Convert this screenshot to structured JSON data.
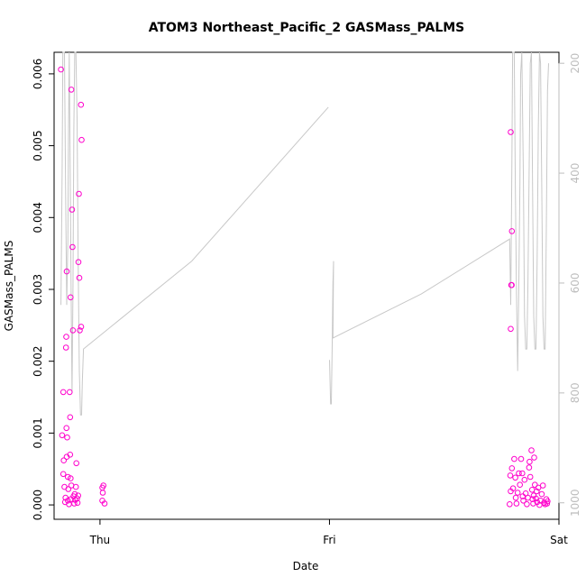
{
  "chart_data": {
    "type": "scatter",
    "title": "ATOM3 Northeast_Pacific_2 GASMass_PALMS",
    "xlabel": "Date",
    "ylabel": "GASMass_PALMS",
    "x_ticks": [
      "Thu",
      "Fri",
      "Sat"
    ],
    "x_range_days": [
      -0.2,
      2.0
    ],
    "ylim": [
      -0.0002,
      0.0063
    ],
    "y_ticks": [
      "0.000",
      "0.001",
      "0.002",
      "0.003",
      "0.004",
      "0.005",
      "0.006"
    ],
    "y_tick_values": [
      0,
      0.001,
      0.002,
      0.003,
      0.004,
      0.005,
      0.006
    ],
    "right_axis": {
      "ticks": [
        "200",
        "400",
        "600",
        "800",
        "1000"
      ],
      "tick_values": [
        200,
        400,
        600,
        800,
        1000
      ],
      "range": [
        1030,
        180
      ],
      "color": "#bdbdbd"
    },
    "grid": false,
    "colors": {
      "points": "#ff00cc",
      "line": "#c8c8c8"
    },
    "series": [
      {
        "type": "points",
        "points": [
          [
            -0.17,
            0.00606
          ],
          [
            -0.16,
            0.00157
          ],
          [
            -0.165,
            0.00097
          ],
          [
            -0.158,
            0.00062
          ],
          [
            -0.16,
            0.00043
          ],
          [
            -0.155,
            0.00025
          ],
          [
            -0.15,
            0.0001
          ],
          [
            -0.152,
            4e-05
          ],
          [
            -0.148,
            0.00219
          ],
          [
            -0.147,
            0.00234
          ],
          [
            -0.145,
            0.00325
          ],
          [
            -0.146,
            0.00107
          ],
          [
            -0.143,
            0.00094
          ],
          [
            -0.145,
            0.00067
          ],
          [
            -0.14,
            0.00039
          ],
          [
            -0.138,
            0.00022
          ],
          [
            -0.14,
            6e-05
          ],
          [
            -0.135,
            1e-05
          ],
          [
            -0.132,
            0.00157
          ],
          [
            -0.13,
            0.00122
          ],
          [
            -0.13,
            0.0007
          ],
          [
            -0.128,
            0.00037
          ],
          [
            -0.125,
            0.00027
          ],
          [
            -0.127,
            8e-05
          ],
          [
            -0.128,
            0.00289
          ],
          [
            -0.125,
            0.00578
          ],
          [
            -0.122,
            0.00411
          ],
          [
            -0.12,
            0.00359
          ],
          [
            -0.118,
            0.00243
          ],
          [
            -0.115,
            0.00012
          ],
          [
            -0.112,
            2e-05
          ],
          [
            -0.11,
            0.00015
          ],
          [
            -0.108,
            7e-05
          ],
          [
            -0.105,
            0.00025
          ],
          [
            -0.103,
            0.00058
          ],
          [
            -0.1,
            9e-05
          ],
          [
            -0.098,
            3e-05
          ],
          [
            -0.095,
            0.00013
          ],
          [
            -0.094,
            0.00338
          ],
          [
            -0.092,
            0.00433
          ],
          [
            -0.09,
            0.00316
          ],
          [
            -0.088,
            0.00243
          ],
          [
            -0.083,
            0.00557
          ],
          [
            -0.08,
            0.00508
          ],
          [
            -0.082,
            0.00248
          ],
          [
            0.01,
            0.00024
          ],
          [
            0.015,
            0.00027
          ],
          [
            0.012,
            0.00017
          ],
          [
            0.01,
            6e-05
          ],
          [
            0.02,
            2e-05
          ],
          [
            1.79,
            0.00519
          ],
          [
            1.795,
            0.00381
          ],
          [
            1.792,
            0.00306
          ],
          [
            1.794,
            0.00306
          ],
          [
            1.79,
            0.00245
          ],
          [
            1.785,
            1e-05
          ],
          [
            1.79,
            0.00019
          ],
          [
            1.788,
            0.00041
          ],
          [
            1.795,
            0.00051
          ],
          [
            1.8,
            0.00023
          ],
          [
            1.805,
            0.00064
          ],
          [
            1.81,
            0.00038
          ],
          [
            1.812,
            0.0001
          ],
          [
            1.815,
            2e-05
          ],
          [
            1.82,
            0.00017
          ],
          [
            1.825,
            0.00044
          ],
          [
            1.83,
            0.00028
          ],
          [
            1.835,
            0.00064
          ],
          [
            1.84,
            0.00044
          ],
          [
            1.842,
            0.00012
          ],
          [
            1.845,
            6e-05
          ],
          [
            1.85,
            0.00035
          ],
          [
            1.855,
            0.00016
          ],
          [
            1.86,
            1e-05
          ],
          [
            1.865,
            0.0001
          ],
          [
            1.87,
            0.00052
          ],
          [
            1.872,
            0.0006
          ],
          [
            1.875,
            0.00039
          ],
          [
            1.88,
            0.00076
          ],
          [
            1.883,
            0.00021
          ],
          [
            1.885,
            8e-05
          ],
          [
            1.888,
            2e-05
          ],
          [
            1.89,
            0.00013
          ],
          [
            1.892,
            0.00066
          ],
          [
            1.895,
            0.00028
          ],
          [
            1.9,
            9e-05
          ],
          [
            1.903,
            0.00019
          ],
          [
            1.905,
            4e-05
          ],
          [
            1.91,
            0.00024
          ],
          [
            1.915,
            0.0
          ],
          [
            1.92,
            6e-05
          ],
          [
            1.925,
            0.00015
          ],
          [
            1.93,
            0.00027
          ],
          [
            1.935,
            3e-05
          ],
          [
            1.94,
            1e-05
          ],
          [
            1.945,
            8e-05
          ],
          [
            1.948,
            2e-05
          ],
          [
            1.95,
            5e-05
          ]
        ]
      },
      {
        "type": "line",
        "name": "",
        "axis": "right",
        "segments": [
          [
            [
              -0.17,
              640
            ],
            [
              -0.165,
              400
            ],
            [
              -0.162,
              140
            ],
            [
              -0.155,
              170
            ],
            [
              -0.15,
              420
            ],
            [
              -0.145,
              640
            ],
            [
              -0.14,
              520
            ],
            [
              -0.137,
              320
            ],
            [
              -0.134,
              140
            ],
            [
              -0.13,
              380
            ],
            [
              -0.126,
              600
            ],
            [
              -0.122,
              800
            ],
            [
              -0.118,
              620
            ],
            [
              -0.114,
              320
            ],
            [
              -0.11,
              160
            ],
            [
              -0.105,
              120
            ],
            [
              -0.1,
              300
            ],
            [
              -0.095,
              560
            ],
            [
              -0.09,
              760
            ],
            [
              -0.085,
              840
            ],
            [
              -0.08,
              840
            ],
            [
              -0.077,
              780
            ],
            [
              -0.072,
              720
            ],
            [
              0.4,
              560
            ],
            [
              0.995,
              280
            ]
          ],
          [
            [
              1.0,
              740
            ],
            [
              1.005,
              820
            ],
            [
              1.008,
              820
            ],
            [
              1.012,
              710
            ],
            [
              1.015,
              600
            ],
            [
              1.018,
              560
            ],
            [
              1.015,
              700
            ],
            [
              1.4,
              620
            ],
            [
              1.785,
              520
            ],
            [
              1.79,
              640
            ],
            [
              1.795,
              380
            ],
            [
              1.798,
              140
            ],
            [
              1.805,
              170
            ],
            [
              1.81,
              420
            ],
            [
              1.815,
              620
            ],
            [
              1.82,
              760
            ],
            [
              1.825,
              600
            ],
            [
              1.83,
              420
            ],
            [
              1.833,
              220
            ],
            [
              1.838,
              170
            ],
            [
              1.845,
              400
            ],
            [
              1.85,
              660
            ],
            [
              1.855,
              720
            ],
            [
              1.86,
              720
            ],
            [
              1.865,
              600
            ],
            [
              1.87,
              400
            ],
            [
              1.875,
              200
            ],
            [
              1.88,
              180
            ],
            [
              1.885,
              420
            ],
            [
              1.89,
              660
            ],
            [
              1.895,
              720
            ],
            [
              1.9,
              720
            ],
            [
              1.905,
              560
            ],
            [
              1.91,
              320
            ],
            [
              1.915,
              180
            ],
            [
              1.92,
              200
            ],
            [
              1.925,
              420
            ],
            [
              1.93,
              660
            ],
            [
              1.935,
              720
            ],
            [
              1.94,
              720
            ],
            [
              1.945,
              500
            ],
            [
              1.95,
              250
            ],
            [
              1.955,
              200
            ]
          ]
        ]
      }
    ]
  }
}
